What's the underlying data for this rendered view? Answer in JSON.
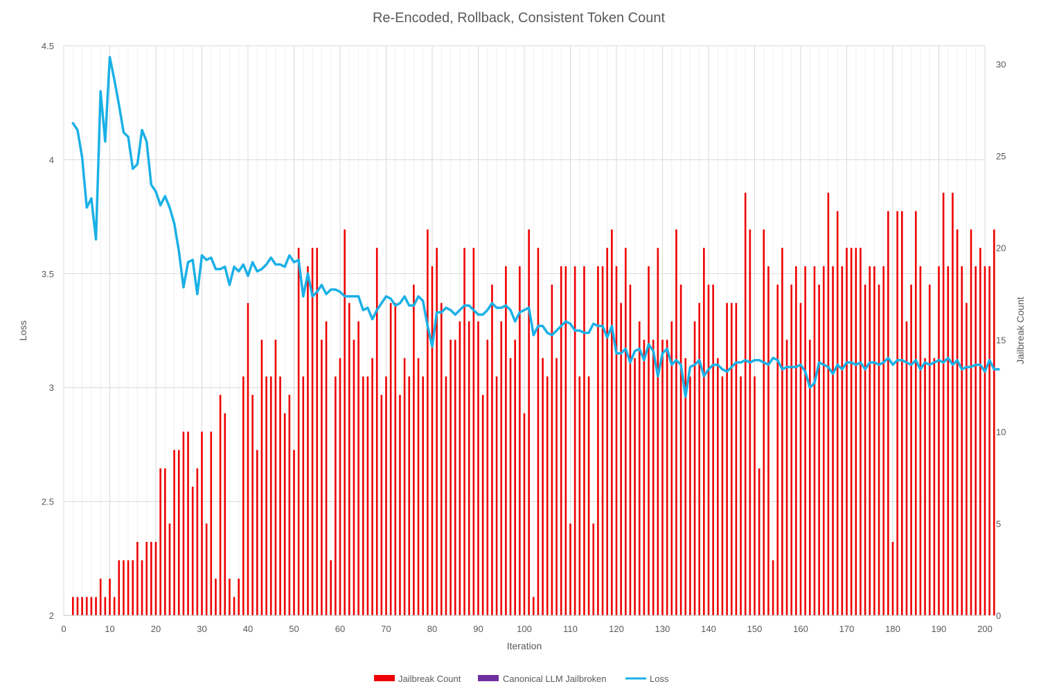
{
  "chart_data": {
    "type": "bar",
    "title": "Re-Encoded, Rollback, Consistent Token Count",
    "xlabel": "Iteration",
    "ylabel": "Loss",
    "y2label": "Jailbreak Count",
    "xlim": [
      0,
      200
    ],
    "ylim": [
      2,
      4.5
    ],
    "y2lim": [
      0,
      31
    ],
    "x_ticks": [
      "0",
      "10",
      "20",
      "30",
      "40",
      "50",
      "60",
      "70",
      "80",
      "90",
      "100",
      "110",
      "120",
      "130",
      "140",
      "150",
      "160",
      "170",
      "180",
      "190",
      "200"
    ],
    "y_ticks": [
      "2",
      "2.5",
      "3",
      "3.5",
      "4",
      "4.5"
    ],
    "y2_ticks": [
      "0",
      "5",
      "10",
      "15",
      "20",
      "25",
      "30"
    ],
    "grid": true,
    "legend_position": "bottom",
    "legend": [
      "Jailbreak Count",
      "Canonical LLM Jailbroken",
      "Loss"
    ],
    "colors": {
      "jailbreak": "#ee0000",
      "canonical": "#7030a0",
      "loss": "#1ab0e6"
    },
    "series": [
      {
        "name": "Jailbreak Count",
        "axis": "right",
        "kind": "bar",
        "x_start": 2,
        "values": [
          1,
          1,
          1,
          1,
          1,
          1,
          2,
          1,
          2,
          1,
          3,
          3,
          3,
          3,
          4,
          3,
          4,
          4,
          4,
          8,
          8,
          5,
          9,
          9,
          10,
          10,
          7,
          8,
          10,
          5,
          10,
          2,
          12,
          11,
          2,
          1,
          2,
          13,
          17,
          12,
          9,
          15,
          13,
          13,
          15,
          13,
          11,
          12,
          9,
          20,
          13,
          19,
          20,
          20,
          15,
          16,
          3,
          13,
          14,
          21,
          17,
          15,
          16,
          13,
          13,
          14,
          20,
          12,
          13,
          17,
          17,
          12,
          14,
          13,
          18,
          14,
          13,
          21,
          19,
          20,
          17,
          13,
          15,
          15,
          16,
          20,
          16,
          20,
          16,
          12,
          15,
          18,
          13,
          16,
          19,
          14,
          15,
          19,
          11,
          21,
          1,
          20,
          14,
          13,
          18,
          14,
          19,
          19,
          5,
          19,
          13,
          19,
          13,
          5,
          19,
          19,
          20,
          21,
          19,
          17,
          20,
          18,
          14,
          16,
          15,
          19,
          15,
          20,
          15,
          15,
          16,
          21,
          18,
          14,
          13,
          16,
          17,
          20,
          18,
          18,
          14,
          13,
          17,
          17,
          17,
          13,
          23,
          21,
          13,
          8,
          21,
          19,
          3,
          18,
          20,
          15,
          18,
          19,
          17,
          19,
          15,
          19,
          18,
          19,
          23,
          19,
          22,
          19,
          20,
          20,
          20,
          20,
          18,
          19,
          19,
          18,
          19,
          22,
          4,
          22,
          22,
          16,
          18,
          22,
          19,
          14,
          18,
          14,
          19,
          23,
          19,
          23,
          21,
          19,
          17,
          21,
          19,
          20,
          19,
          19,
          21
        ]
      },
      {
        "name": "Canonical LLM Jailbroken",
        "axis": "right",
        "kind": "bar",
        "values": []
      },
      {
        "name": "Loss",
        "axis": "left",
        "kind": "line",
        "x_start": 2,
        "values": [
          4.16,
          4.13,
          4.01,
          3.79,
          3.83,
          3.65,
          4.3,
          4.08,
          4.45,
          4.35,
          4.24,
          4.12,
          4.1,
          3.96,
          3.98,
          4.13,
          4.08,
          3.89,
          3.86,
          3.8,
          3.84,
          3.79,
          3.72,
          3.6,
          3.44,
          3.55,
          3.56,
          3.41,
          3.58,
          3.56,
          3.57,
          3.52,
          3.52,
          3.53,
          3.45,
          3.53,
          3.51,
          3.54,
          3.49,
          3.55,
          3.51,
          3.52,
          3.54,
          3.57,
          3.54,
          3.54,
          3.53,
          3.58,
          3.55,
          3.56,
          3.4,
          3.5,
          3.4,
          3.42,
          3.45,
          3.41,
          3.43,
          3.43,
          3.42,
          3.4,
          3.4,
          3.4,
          3.4,
          3.34,
          3.35,
          3.3,
          3.34,
          3.37,
          3.4,
          3.39,
          3.36,
          3.37,
          3.4,
          3.36,
          3.36,
          3.4,
          3.38,
          3.27,
          3.18,
          3.33,
          3.33,
          3.35,
          3.34,
          3.32,
          3.34,
          3.36,
          3.36,
          3.34,
          3.32,
          3.32,
          3.34,
          3.37,
          3.35,
          3.35,
          3.36,
          3.34,
          3.29,
          3.33,
          3.34,
          3.35,
          3.23,
          3.27,
          3.27,
          3.24,
          3.23,
          3.25,
          3.27,
          3.29,
          3.28,
          3.25,
          3.25,
          3.24,
          3.24,
          3.28,
          3.27,
          3.27,
          3.22,
          3.27,
          3.15,
          3.15,
          3.17,
          3.11,
          3.16,
          3.17,
          3.12,
          3.19,
          3.16,
          3.05,
          3.15,
          3.17,
          3.1,
          3.12,
          3.1,
          2.96,
          3.09,
          3.1,
          3.12,
          3.05,
          3.08,
          3.1,
          3.1,
          3.08,
          3.07,
          3.09,
          3.11,
          3.11,
          3.12,
          3.11,
          3.12,
          3.12,
          3.11,
          3.1,
          3.13,
          3.12,
          3.08,
          3.09,
          3.09,
          3.09,
          3.1,
          3.07,
          3,
          3.02,
          3.11,
          3.1,
          3.09,
          3.06,
          3.1,
          3.08,
          3.11,
          3.11,
          3.1,
          3.11,
          3.08,
          3.11,
          3.11,
          3.1,
          3.11,
          3.13,
          3.1,
          3.12,
          3.12,
          3.11,
          3.1,
          3.12,
          3.08,
          3.11,
          3.1,
          3.11,
          3.12,
          3.11,
          3.13,
          3.1,
          3.12,
          3.08,
          3.09,
          3.09,
          3.1,
          3.1,
          3.07,
          3.12,
          3.08,
          3.08
        ]
      }
    ]
  }
}
